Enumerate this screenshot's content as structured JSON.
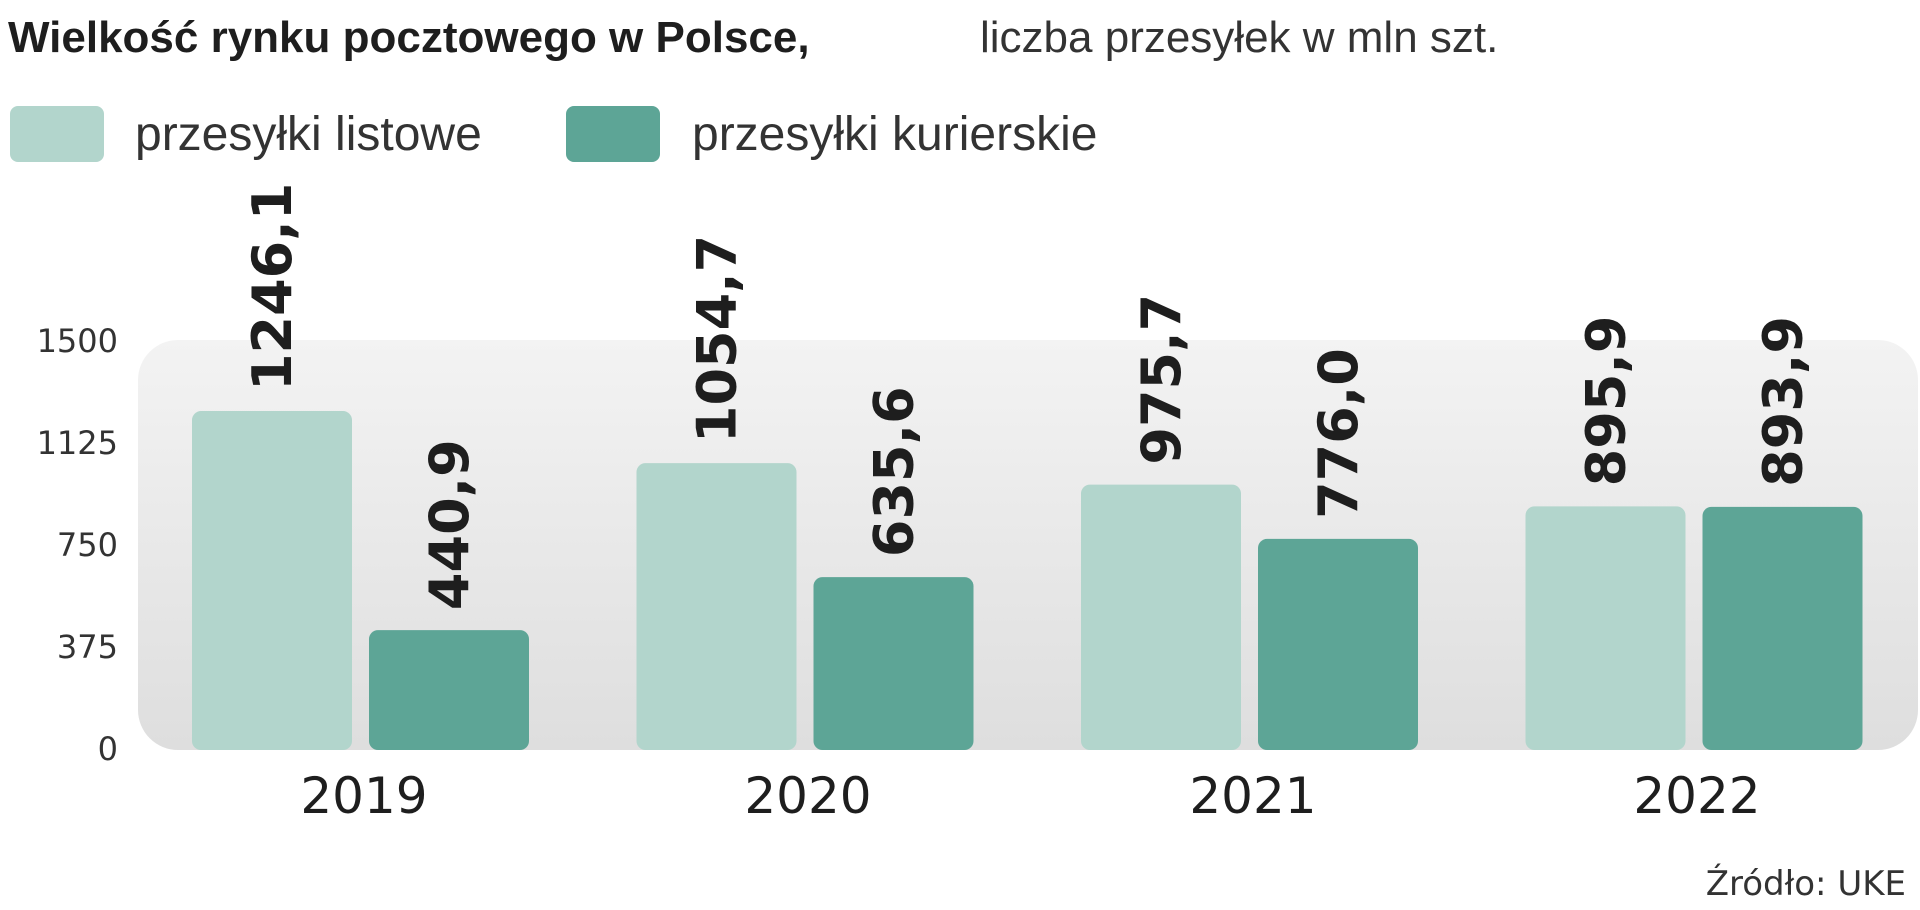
{
  "chart_data": {
    "type": "bar",
    "title": "Wielkość rynku pocztowego w Polsce,",
    "subtitle": "liczba przesyłek w mln szt.",
    "categories": [
      "2019",
      "2020",
      "2021",
      "2022"
    ],
    "series": [
      {
        "name": "przesyłki listowe",
        "color": "#b2d5cc",
        "values": [
          1246.1,
          1054.7,
          975.7,
          895.9
        ],
        "labels": [
          "1246,1",
          "1054,7",
          "975,7",
          "895,9"
        ]
      },
      {
        "name": "przesyłki kurierskie",
        "color": "#5da596",
        "values": [
          440.9,
          635.6,
          776.0,
          893.9
        ],
        "labels": [
          "440,9",
          "635,6",
          "776,0",
          "893,9"
        ]
      }
    ],
    "yticks": [
      "0",
      "375",
      "750",
      "1125",
      "1500"
    ],
    "ylim": [
      0,
      1500
    ],
    "xlabel": "",
    "ylabel": "",
    "grid": false,
    "legend_position": "top-left",
    "source": "Źródło: UKE"
  }
}
